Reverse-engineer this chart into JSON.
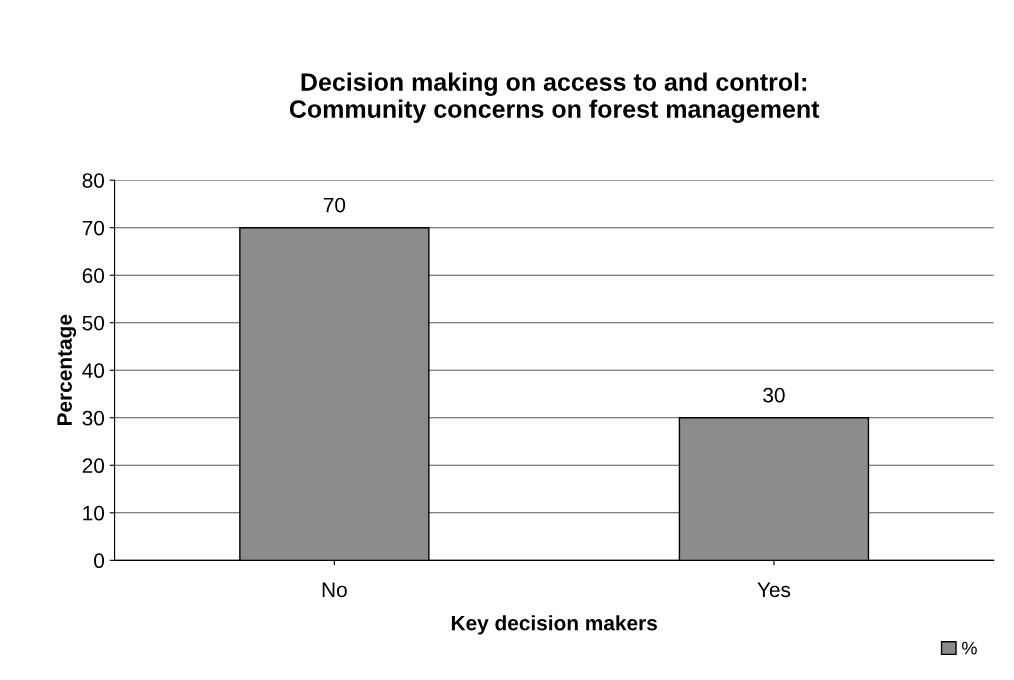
{
  "chart_data": {
    "type": "bar",
    "title": "Decision making on access to and control:\nCommunity concerns on forest management",
    "categories": [
      "No",
      "Yes"
    ],
    "series": [
      {
        "name": "%",
        "color": "#8c8c8c",
        "values": [
          70,
          30
        ]
      }
    ],
    "xlabel": "Key decision makers",
    "ylabel": "Percentage",
    "ylim": [
      0,
      80
    ],
    "yticks": [
      0,
      10,
      20,
      30,
      40,
      50,
      60,
      70,
      80
    ],
    "grid": "y",
    "legend": "bottom right",
    "data_labels": true
  }
}
